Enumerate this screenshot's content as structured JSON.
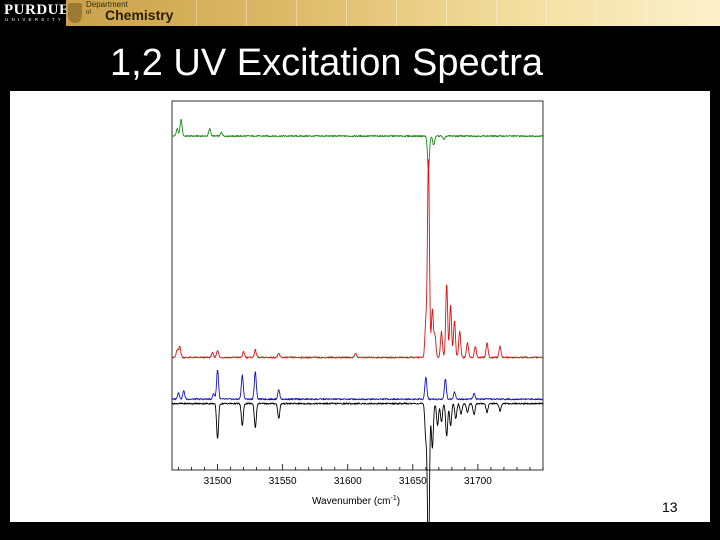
{
  "header": {
    "university_logo_text": "PURDUE",
    "university_logo_subtext": "UNIVERSITY",
    "department_line1": "Department",
    "department_line2": "of",
    "department_name": "Chemistry"
  },
  "slide": {
    "title": "1,2 UV Excitation Spectra",
    "page_number": "13"
  },
  "colors": {
    "background": "#000000",
    "header_gold": "#d9b45e",
    "trace_green": "#1a8a1a",
    "trace_red": "#dd1111",
    "trace_blue": "#1111cc",
    "trace_black": "#000000"
  },
  "chart_data": {
    "type": "line",
    "xlabel": "Wavenumber (cm-1)",
    "xlabel_base": "Wavenumber (cm",
    "xlabel_sup": "-1",
    "xlabel_end": ")",
    "ylabel": "",
    "xlim": [
      31465,
      31750
    ],
    "xticks": [
      31500,
      31550,
      31600,
      31650,
      31700
    ],
    "xtick_labels": [
      "31500",
      "31550",
      "31600",
      "31650",
      "31700"
    ],
    "yaxis_visible": false,
    "grid": false,
    "series": [
      {
        "color": "#1a8a1a",
        "baseline": 0.905,
        "peaks": [
          [
            31469,
            0.02
          ],
          [
            31472,
            0.045
          ],
          [
            31494,
            0.02
          ],
          [
            31503,
            0.01
          ],
          [
            31662,
            -0.09
          ],
          [
            31666,
            -0.025
          ],
          [
            31674,
            -0.01
          ]
        ]
      },
      {
        "color": "#dd1111",
        "baseline": 0.305,
        "peaks": [
          [
            31469,
            0.02
          ],
          [
            31471,
            0.03
          ],
          [
            31496,
            0.012
          ],
          [
            31500,
            0.02
          ],
          [
            31520,
            0.015
          ],
          [
            31529,
            0.02
          ],
          [
            31547,
            0.01
          ],
          [
            31606,
            0.012
          ],
          [
            31660,
            0.095
          ],
          [
            31662,
            0.54
          ],
          [
            31665,
            0.13
          ],
          [
            31667,
            0.06
          ],
          [
            31672,
            0.07
          ],
          [
            31676,
            0.2
          ],
          [
            31679,
            0.14
          ],
          [
            31682,
            0.1
          ],
          [
            31686,
            0.07
          ],
          [
            31692,
            0.04
          ],
          [
            31698,
            0.03
          ],
          [
            31707,
            0.04
          ],
          [
            31717,
            0.03
          ]
        ]
      },
      {
        "color": "#1111cc",
        "baseline": 0.192,
        "peaks": [
          [
            31470,
            0.018
          ],
          [
            31474,
            0.022
          ],
          [
            31497,
            0.015
          ],
          [
            31500,
            0.08
          ],
          [
            31519,
            0.065
          ],
          [
            31529,
            0.075
          ],
          [
            31547,
            0.025
          ],
          [
            31660,
            0.06
          ],
          [
            31675,
            0.055
          ],
          [
            31682,
            0.02
          ],
          [
            31697,
            0.015
          ]
        ]
      },
      {
        "color": "#000000",
        "baseline": 0.18,
        "peaks": [
          [
            31500,
            -0.095
          ],
          [
            31519,
            -0.06
          ],
          [
            31529,
            -0.065
          ],
          [
            31547,
            -0.04
          ],
          [
            31660,
            -0.09
          ],
          [
            31662,
            -0.43
          ],
          [
            31665,
            -0.12
          ],
          [
            31669,
            -0.06
          ],
          [
            31672,
            -0.05
          ],
          [
            31676,
            -0.09
          ],
          [
            31679,
            -0.06
          ],
          [
            31683,
            -0.04
          ],
          [
            31687,
            -0.03
          ],
          [
            31692,
            -0.025
          ],
          [
            31697,
            -0.03
          ],
          [
            31707,
            -0.025
          ],
          [
            31717,
            -0.02
          ]
        ]
      }
    ]
  }
}
